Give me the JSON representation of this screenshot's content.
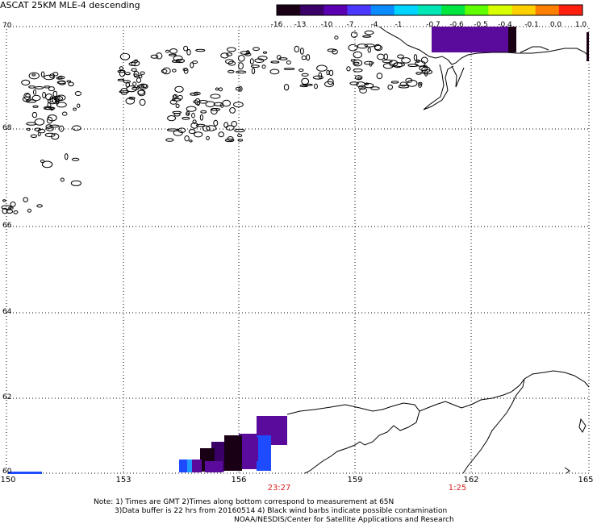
{
  "title": "ASCAT 25KM MLE-4 descending",
  "colorbar": {
    "labels": [
      "-16",
      "-13",
      "-10",
      "-7",
      "-4",
      "-1",
      "-0.7",
      "-0.6",
      "-0.5",
      "-0.4",
      "-0.1",
      "0.0",
      "1.0"
    ],
    "colors": [
      "#1a0014",
      "#3a0068",
      "#5a00b0",
      "#4a38ff",
      "#0a8cff",
      "#00d4ff",
      "#00e6b4",
      "#00e640",
      "#60ff00",
      "#d8ff00",
      "#ffd000",
      "#ff8000",
      "#ff2010"
    ]
  },
  "lat_labels": [
    "70",
    "68",
    "66",
    "64",
    "62",
    "60"
  ],
  "lon_labels": [
    "150",
    "153",
    "156",
    "159",
    "162",
    "165"
  ],
  "time_labels": [
    "23:27",
    "1:25"
  ],
  "notes": {
    "line1": "Note: 1) Times are GMT 2)Times along bottom correspond to measurement at 65N",
    "line2": "3)Data buffer is 22 hrs from 20160514 4) Black wind barbs indicate possible contamination",
    "line3": "NOAA/NESDIS/Center for Satellite Applications and Research"
  },
  "colors": {
    "grid": "#000000",
    "coast": "#000000",
    "time_text": "#d41e1e",
    "data_purple": "#5a0b9c",
    "data_dark": "#1a0014",
    "data_blue": "#1e4bff",
    "data_cyan": "#1e9cff"
  }
}
